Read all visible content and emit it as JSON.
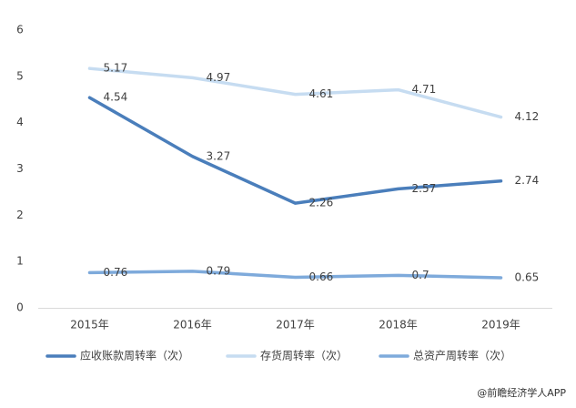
{
  "chart_data": {
    "type": "line",
    "categories": [
      "2015年",
      "2016年",
      "2017年",
      "2018年",
      "2019年"
    ],
    "series": [
      {
        "name": "应收账款周转率（次）",
        "color": "#4a7ebb",
        "values": [
          4.54,
          3.27,
          2.26,
          2.57,
          2.74
        ]
      },
      {
        "name": "存货周转率（次）",
        "color": "#c6dcf1",
        "values": [
          5.17,
          4.97,
          4.61,
          4.71,
          4.12
        ]
      },
      {
        "name": "总资产周转率（次）",
        "color": "#7eaadb",
        "values": [
          0.76,
          0.79,
          0.66,
          0.7,
          0.65
        ]
      }
    ],
    "ylim": [
      0,
      6
    ],
    "yticks": [
      0,
      1,
      2,
      3,
      4,
      5,
      6
    ],
    "grid": false,
    "legend": "bottom",
    "data_labels": true,
    "source": "@前瞻经济学人APP"
  }
}
